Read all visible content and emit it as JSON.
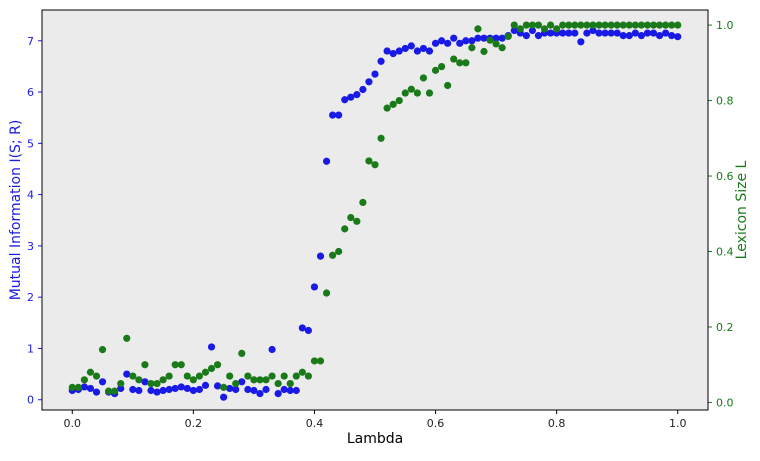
{
  "colors": {
    "background": "#ebebeb",
    "left_series": "#1a1ae6",
    "right_series": "#1a7a1a",
    "axis": "#000000"
  },
  "chart_data": {
    "type": "scatter",
    "title": "",
    "xlabel": "Lambda",
    "ylabel_left": "Mutual Information I(S; R)",
    "ylabel_right": "Lexicon Size L",
    "xlim": [
      -0.05,
      1.05
    ],
    "ylim_left": [
      -0.2,
      7.6
    ],
    "ylim_right": [
      -0.02,
      1.04
    ],
    "xticks": [
      "0.0",
      "0.2",
      "0.4",
      "0.6",
      "0.8",
      "1.0"
    ],
    "yticks_left": [
      "0",
      "1",
      "2",
      "3",
      "4",
      "5",
      "6",
      "7"
    ],
    "yticks_right": [
      "0.0",
      "0.2",
      "0.4",
      "0.6",
      "0.8",
      "1.0"
    ],
    "series": [
      {
        "name": "Mutual Information",
        "axis": "left",
        "x": [
          0.0,
          0.01,
          0.02,
          0.03,
          0.04,
          0.05,
          0.06,
          0.07,
          0.08,
          0.09,
          0.1,
          0.11,
          0.12,
          0.13,
          0.14,
          0.15,
          0.16,
          0.17,
          0.18,
          0.19,
          0.2,
          0.21,
          0.22,
          0.23,
          0.24,
          0.25,
          0.26,
          0.27,
          0.28,
          0.29,
          0.3,
          0.31,
          0.32,
          0.33,
          0.34,
          0.35,
          0.36,
          0.37,
          0.38,
          0.39,
          0.4,
          0.41,
          0.42,
          0.43,
          0.44,
          0.45,
          0.46,
          0.47,
          0.48,
          0.49,
          0.5,
          0.51,
          0.52,
          0.53,
          0.54,
          0.55,
          0.56,
          0.57,
          0.58,
          0.59,
          0.6,
          0.61,
          0.62,
          0.63,
          0.64,
          0.65,
          0.66,
          0.67,
          0.68,
          0.69,
          0.7,
          0.71,
          0.72,
          0.73,
          0.74,
          0.75,
          0.76,
          0.77,
          0.78,
          0.79,
          0.8,
          0.81,
          0.82,
          0.83,
          0.84,
          0.85,
          0.86,
          0.87,
          0.88,
          0.89,
          0.9,
          0.91,
          0.92,
          0.93,
          0.94,
          0.95,
          0.96,
          0.97,
          0.98,
          0.99,
          1.0
        ],
        "values": [
          0.18,
          0.2,
          0.25,
          0.22,
          0.15,
          0.35,
          0.15,
          0.12,
          0.22,
          0.5,
          0.2,
          0.18,
          0.35,
          0.18,
          0.15,
          0.18,
          0.2,
          0.22,
          0.25,
          0.22,
          0.18,
          0.2,
          0.28,
          1.03,
          0.27,
          0.05,
          0.22,
          0.2,
          0.35,
          0.2,
          0.18,
          0.12,
          0.2,
          0.98,
          0.12,
          0.2,
          0.18,
          0.18,
          1.4,
          1.35,
          2.2,
          2.8,
          4.65,
          5.55,
          5.55,
          5.85,
          5.9,
          5.95,
          6.05,
          6.2,
          6.35,
          6.6,
          6.8,
          6.75,
          6.8,
          6.85,
          6.9,
          6.8,
          6.85,
          6.8,
          6.95,
          7.0,
          6.95,
          7.05,
          6.95,
          7.0,
          7.0,
          7.05,
          7.05,
          7.05,
          7.05,
          7.05,
          7.1,
          7.2,
          7.15,
          7.1,
          7.2,
          7.1,
          7.15,
          7.15,
          7.15,
          7.15,
          7.15,
          7.15,
          6.98,
          7.15,
          7.2,
          7.15,
          7.15,
          7.15,
          7.15,
          7.1,
          7.1,
          7.15,
          7.1,
          7.15,
          7.15,
          7.1,
          7.15,
          7.1,
          7.08
        ]
      },
      {
        "name": "Lexicon Size",
        "axis": "right",
        "x": [
          0.0,
          0.01,
          0.02,
          0.03,
          0.04,
          0.05,
          0.06,
          0.07,
          0.08,
          0.09,
          0.1,
          0.11,
          0.12,
          0.13,
          0.14,
          0.15,
          0.16,
          0.17,
          0.18,
          0.19,
          0.2,
          0.21,
          0.22,
          0.23,
          0.24,
          0.25,
          0.26,
          0.27,
          0.28,
          0.29,
          0.3,
          0.31,
          0.32,
          0.33,
          0.34,
          0.35,
          0.36,
          0.37,
          0.38,
          0.39,
          0.4,
          0.41,
          0.42,
          0.43,
          0.44,
          0.45,
          0.46,
          0.47,
          0.48,
          0.49,
          0.5,
          0.51,
          0.52,
          0.53,
          0.54,
          0.55,
          0.56,
          0.57,
          0.58,
          0.59,
          0.6,
          0.61,
          0.62,
          0.63,
          0.64,
          0.65,
          0.66,
          0.67,
          0.68,
          0.69,
          0.7,
          0.71,
          0.72,
          0.73,
          0.74,
          0.75,
          0.76,
          0.77,
          0.78,
          0.79,
          0.8,
          0.81,
          0.82,
          0.83,
          0.84,
          0.85,
          0.86,
          0.87,
          0.88,
          0.89,
          0.9,
          0.91,
          0.92,
          0.93,
          0.94,
          0.95,
          0.96,
          0.97,
          0.98,
          0.99,
          1.0
        ],
        "values": [
          0.04,
          0.04,
          0.06,
          0.08,
          0.07,
          0.14,
          0.03,
          0.03,
          0.05,
          0.17,
          0.07,
          0.06,
          0.1,
          0.05,
          0.05,
          0.06,
          0.07,
          0.1,
          0.1,
          0.07,
          0.06,
          0.07,
          0.08,
          0.09,
          0.1,
          0.04,
          0.07,
          0.05,
          0.13,
          0.07,
          0.06,
          0.06,
          0.06,
          0.07,
          0.05,
          0.07,
          0.05,
          0.07,
          0.08,
          0.07,
          0.11,
          0.11,
          0.29,
          0.39,
          0.4,
          0.46,
          0.49,
          0.48,
          0.53,
          0.64,
          0.63,
          0.7,
          0.78,
          0.79,
          0.8,
          0.82,
          0.83,
          0.82,
          0.86,
          0.82,
          0.88,
          0.89,
          0.84,
          0.91,
          0.9,
          0.9,
          0.94,
          0.99,
          0.93,
          0.96,
          0.95,
          0.94,
          0.97,
          1.0,
          0.99,
          1.0,
          1.0,
          1.0,
          0.99,
          1.0,
          0.99,
          1.0,
          1.0,
          1.0,
          1.0,
          1.0,
          1.0,
          1.0,
          1.0,
          1.0,
          1.0,
          1.0,
          1.0,
          1.0,
          1.0,
          1.0,
          1.0,
          1.0,
          1.0,
          1.0,
          1.0
        ]
      }
    ]
  }
}
